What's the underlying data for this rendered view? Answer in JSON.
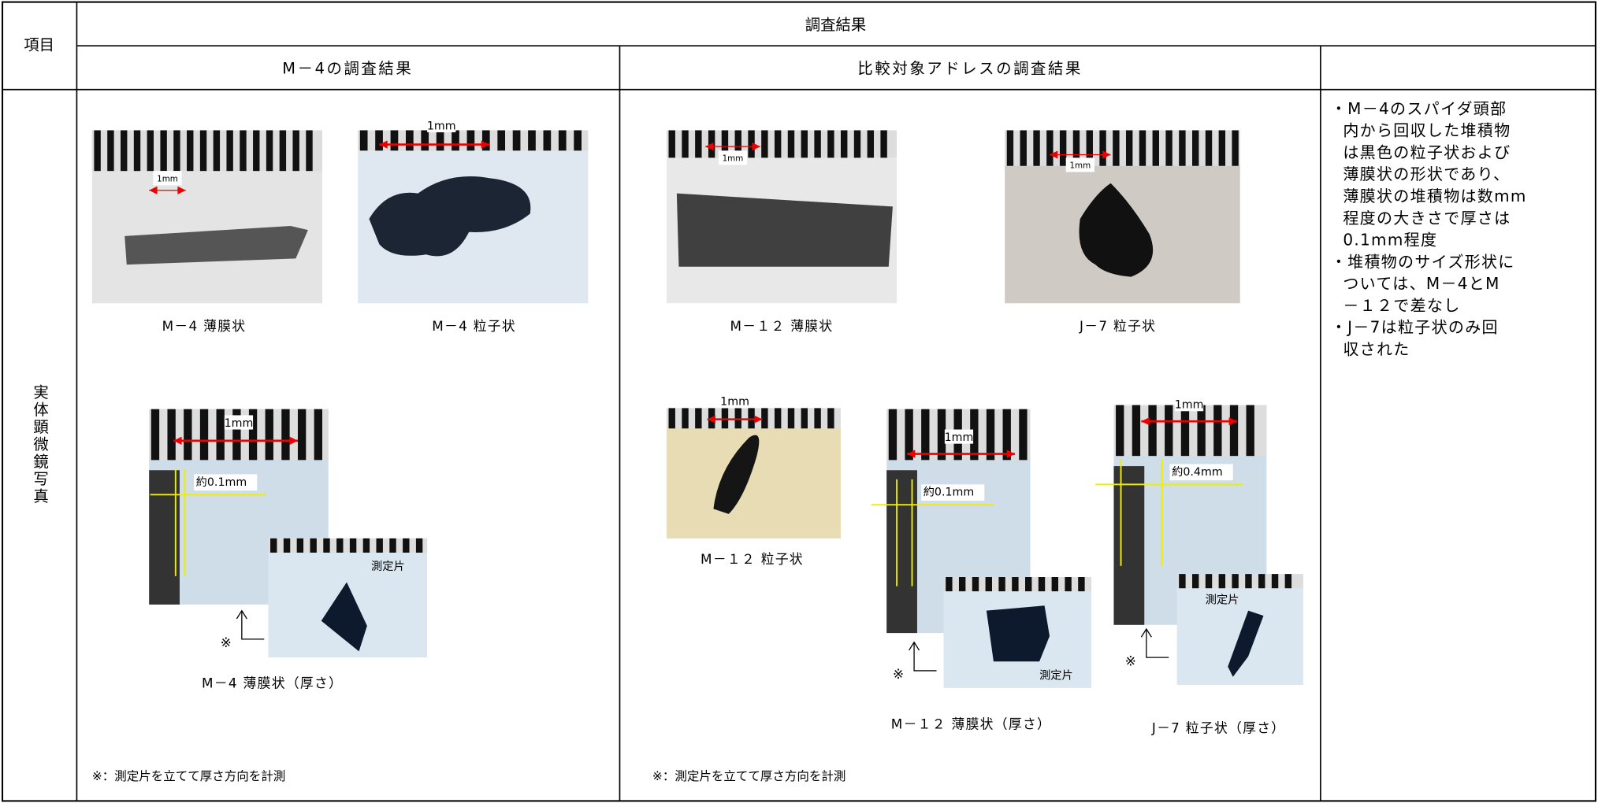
{
  "header": {
    "item_label": "項目",
    "title": "調査結果",
    "col1": "M－4の調査結果",
    "col2": "比較対象アドレスの調査結果"
  },
  "row_label": "実体顕微鏡写真",
  "m4": {
    "film": {
      "caption": "M－4 薄膜状",
      "scale": "1mm"
    },
    "particle": {
      "caption": "M－4 粒子状",
      "scale": "1mm"
    },
    "thickness": {
      "caption": "M－4 薄膜状（厚さ）",
      "scale": "1mm",
      "measure": "約0.1mm",
      "piece": "測定片",
      "mark": "※"
    },
    "note": "※：測定片を立てて厚さ方向を計測"
  },
  "compare": {
    "m12_film": {
      "caption": "M－１２ 薄膜状",
      "scale": "1mm"
    },
    "j7_particle": {
      "caption": "J－7 粒子状",
      "scale": "1mm"
    },
    "m12_particle": {
      "caption": "M－１２ 粒子状",
      "scale": "1mm"
    },
    "m12_thickness": {
      "caption": "M－１２ 薄膜状（厚さ）",
      "scale": "1mm",
      "measure": "約0.1mm",
      "piece": "測定片",
      "mark": "※"
    },
    "j7_thickness": {
      "caption": "J－7 粒子状（厚さ）",
      "scale": "1mm",
      "measure": "約0.4mm",
      "piece": "測定片",
      "mark": "※"
    },
    "note": "※：測定片を立てて厚さ方向を計測"
  },
  "remarks": [
    [
      "・M－4のスパイダ頭部",
      "内から回収した堆積物",
      "は黒色の粒子状および",
      "薄膜状の形状であり、",
      "薄膜状の堆積物は数mm",
      "程度の大きさで厚さは",
      "0.1mm程度"
    ],
    [
      "・堆積物のサイズ形状に",
      "ついては、M－4とM",
      "－１２で差なし"
    ],
    [
      "・J－7は粒子状のみ回",
      "収された"
    ]
  ]
}
